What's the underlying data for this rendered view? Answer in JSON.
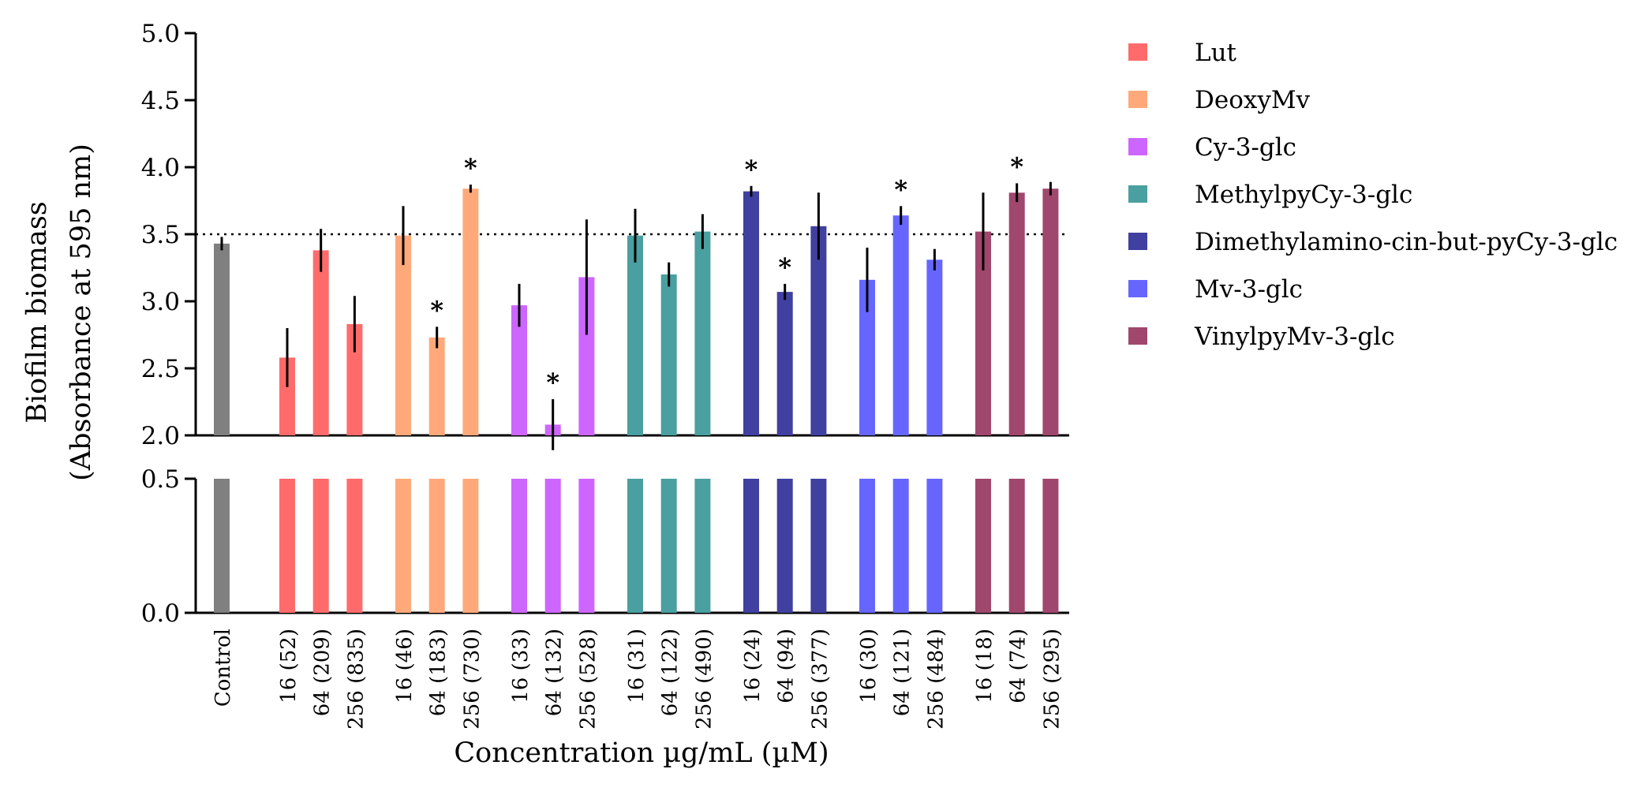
{
  "chart_data": {
    "type": "bar",
    "ylabel_line1": "Biofilm biomass",
    "ylabel_line2": "(Absorbance at 595 nm)",
    "xlabel": "Concentration µg/mL (µM)",
    "reference_line": 3.5,
    "y_axis_upper": {
      "ylim": [
        2.0,
        5.0
      ],
      "ticks": [
        "2.0",
        "2.5",
        "3.0",
        "3.5",
        "4.0",
        "4.5",
        "5.0"
      ]
    },
    "y_axis_lower": {
      "ylim": [
        0.0,
        0.5
      ],
      "ticks": [
        "0.0",
        "0.5"
      ]
    },
    "series": [
      {
        "name": "Control",
        "color": "#808080",
        "in_legend": false,
        "bars": [
          {
            "label": "Control",
            "value": 3.43,
            "error": 0.05,
            "sig": ""
          }
        ]
      },
      {
        "name": "Lut",
        "color": "#FF6B6B",
        "in_legend": true,
        "bars": [
          {
            "label": "16 (52)",
            "value": 2.58,
            "error": 0.22,
            "sig": ""
          },
          {
            "label": "64 (209)",
            "value": 3.38,
            "error": 0.16,
            "sig": ""
          },
          {
            "label": "256 (835)",
            "value": 2.83,
            "error": 0.21,
            "sig": ""
          }
        ]
      },
      {
        "name": "DeoxyMv",
        "color": "#FFA97A",
        "in_legend": true,
        "bars": [
          {
            "label": "16 (46)",
            "value": 3.49,
            "error": 0.22,
            "sig": ""
          },
          {
            "label": "64 (183)",
            "value": 2.73,
            "error": 0.08,
            "sig": "*"
          },
          {
            "label": "256 (730)",
            "value": 3.84,
            "error": 0.03,
            "sig": "*"
          }
        ]
      },
      {
        "name": "Cy-3-glc",
        "color": "#CC66FF",
        "in_legend": true,
        "bars": [
          {
            "label": "16 (33)",
            "value": 2.97,
            "error": 0.16,
            "sig": ""
          },
          {
            "label": "64 (132)",
            "value": 2.08,
            "error": 0.19,
            "sig": "*"
          },
          {
            "label": "256 (528)",
            "value": 3.18,
            "error": 0.43,
            "sig": ""
          }
        ]
      },
      {
        "name": "MethylpyCy-3-glc",
        "color": "#4A9FA0",
        "in_legend": true,
        "bars": [
          {
            "label": "16 (31)",
            "value": 3.49,
            "error": 0.2,
            "sig": ""
          },
          {
            "label": "64 (122)",
            "value": 3.2,
            "error": 0.09,
            "sig": ""
          },
          {
            "label": "256 (490)",
            "value": 3.52,
            "error": 0.13,
            "sig": ""
          }
        ]
      },
      {
        "name": "Dimethylamino-cin-but-pyCy-3-glc",
        "color": "#4040A0",
        "in_legend": true,
        "bars": [
          {
            "label": "16 (24)",
            "value": 3.82,
            "error": 0.04,
            "sig": "*"
          },
          {
            "label": "64 (94)",
            "value": 3.07,
            "error": 0.06,
            "sig": "*"
          },
          {
            "label": "256 (377)",
            "value": 3.56,
            "error": 0.25,
            "sig": ""
          }
        ]
      },
      {
        "name": "Mv-3-glc",
        "color": "#6666FF",
        "in_legend": true,
        "bars": [
          {
            "label": "16 (30)",
            "value": 3.16,
            "error": 0.24,
            "sig": ""
          },
          {
            "label": "64 (121)",
            "value": 3.64,
            "error": 0.07,
            "sig": "*"
          },
          {
            "label": "256 (484)",
            "value": 3.31,
            "error": 0.08,
            "sig": ""
          }
        ]
      },
      {
        "name": "VinylpyMv-3-glc",
        "color": "#A0476E",
        "in_legend": true,
        "bars": [
          {
            "label": "16 (18)",
            "value": 3.52,
            "error": 0.29,
            "sig": ""
          },
          {
            "label": "64 (74)",
            "value": 3.81,
            "error": 0.07,
            "sig": "*"
          },
          {
            "label": "256 (295)",
            "value": 3.84,
            "error": 0.05,
            "sig": ""
          }
        ]
      }
    ]
  }
}
